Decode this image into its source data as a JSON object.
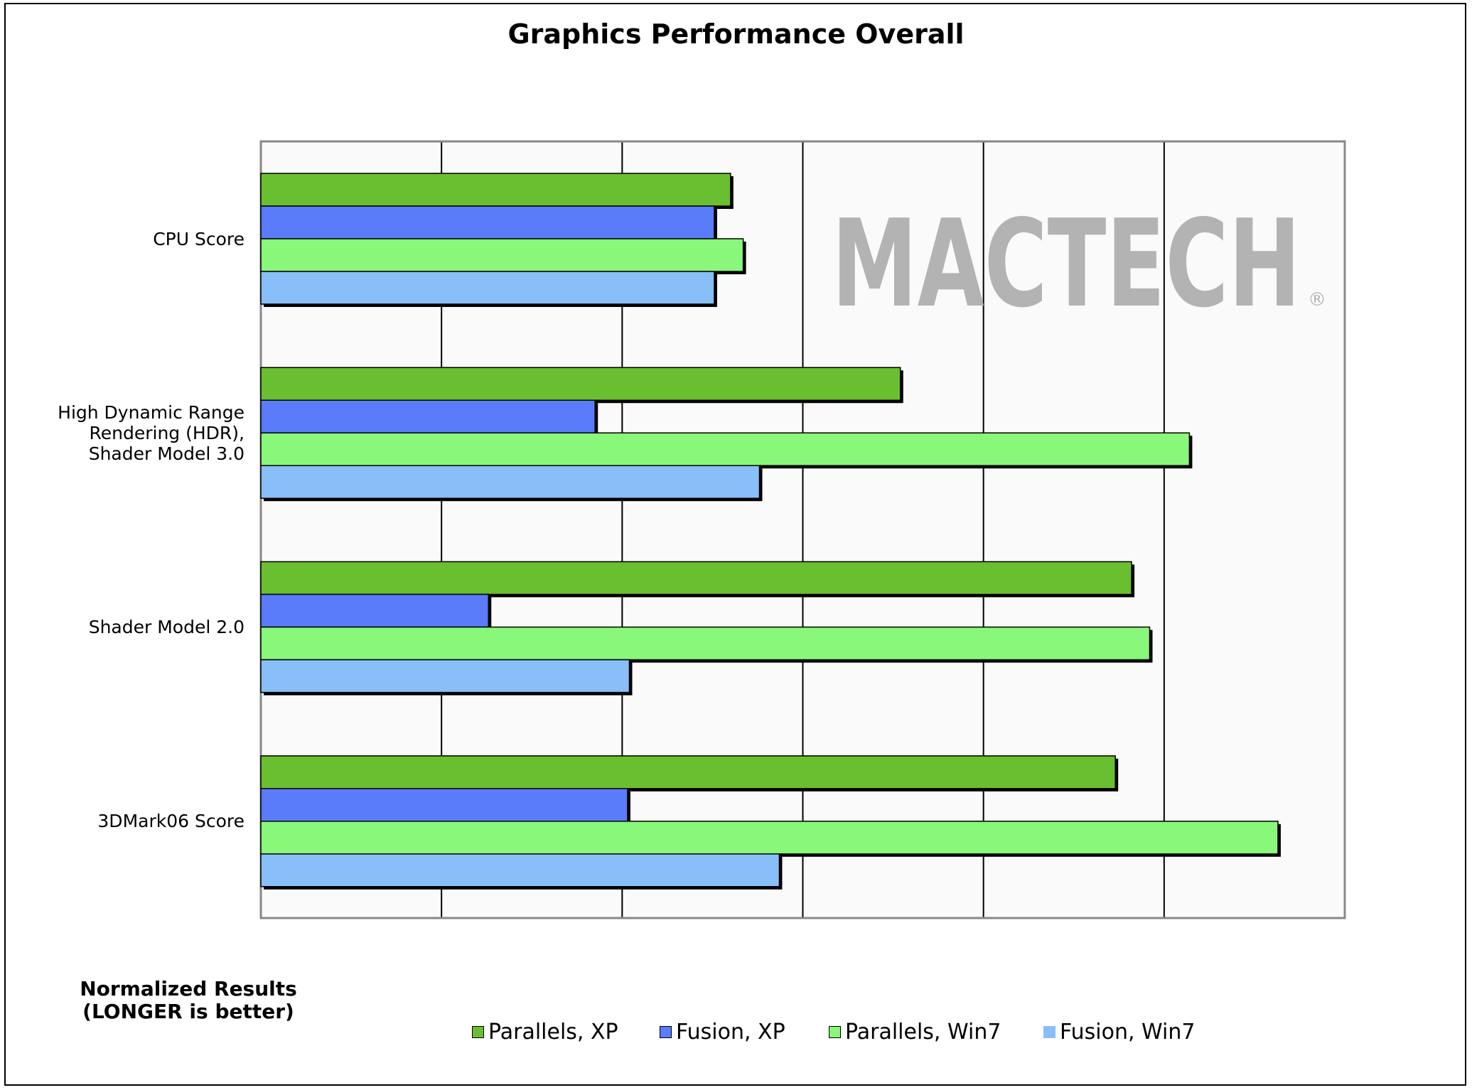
{
  "chart_data": {
    "type": "bar",
    "orientation": "horizontal",
    "title": "Graphics Performance Overall",
    "categories": [
      "CPU Score",
      "High Dynamic Range\nRendering (HDR),\nShader Model 3.0",
      "Shader Model 2.0",
      "3DMark06 Score"
    ],
    "series": [
      {
        "name": "Parallels, XP",
        "color": "#6abf30",
        "values": [
          2.6,
          3.54,
          4.82,
          4.73
        ]
      },
      {
        "name": "Fusion, XP",
        "color": "#5b7cfa",
        "values": [
          2.51,
          1.85,
          1.26,
          2.03
        ]
      },
      {
        "name": "Parallels, Win7",
        "color": "#88f77a",
        "values": [
          2.67,
          5.14,
          4.92,
          5.63
        ]
      },
      {
        "name": "Fusion, Win7",
        "color": "#88bff8",
        "values": [
          2.51,
          2.76,
          2.04,
          2.87
        ]
      }
    ],
    "xlim": [
      0,
      6
    ],
    "grid": true,
    "xlabel": "",
    "ylabel": "",
    "legend": "bottom",
    "note": [
      "Normalized Results",
      "(LONGER is better)"
    ],
    "watermark": {
      "text": "MACTECH",
      "registered": "®",
      "color": "#b3b3b3"
    }
  }
}
